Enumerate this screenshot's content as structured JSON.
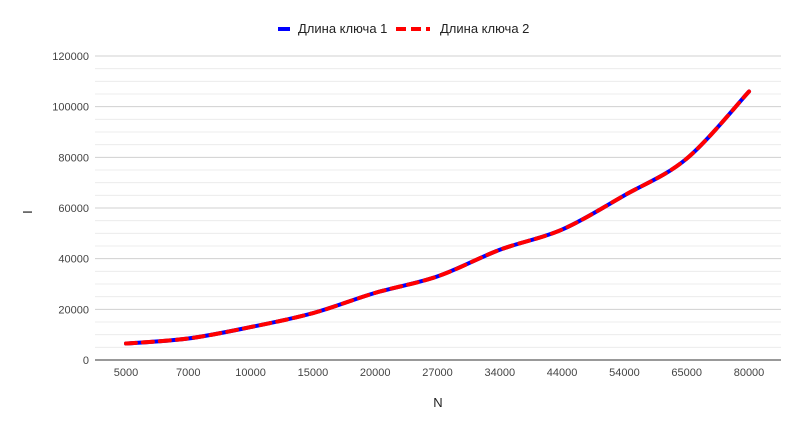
{
  "chart_data": {
    "type": "line",
    "categories": [
      "5000",
      "7000",
      "10000",
      "15000",
      "20000",
      "27000",
      "34000",
      "44000",
      "54000",
      "65000",
      "80000"
    ],
    "series": [
      {
        "name": "Длина ключа 1",
        "color": "#0000ff",
        "values": [
          6500,
          8500,
          13000,
          18500,
          26500,
          33000,
          43500,
          51500,
          65000,
          79500,
          106000
        ]
      },
      {
        "name": "Длина ключа 2",
        "color": "#ff0000",
        "values": [
          6500,
          8500,
          13000,
          18500,
          26500,
          33000,
          43500,
          51500,
          65000,
          79500,
          106000
        ]
      }
    ],
    "xlabel": "N",
    "ylabel": "I",
    "ylim": [
      0,
      120000
    ],
    "yticks": [
      "0",
      "20000",
      "40000",
      "60000",
      "80000",
      "100000",
      "120000"
    ],
    "grid": true,
    "legend_position": "top-center"
  }
}
